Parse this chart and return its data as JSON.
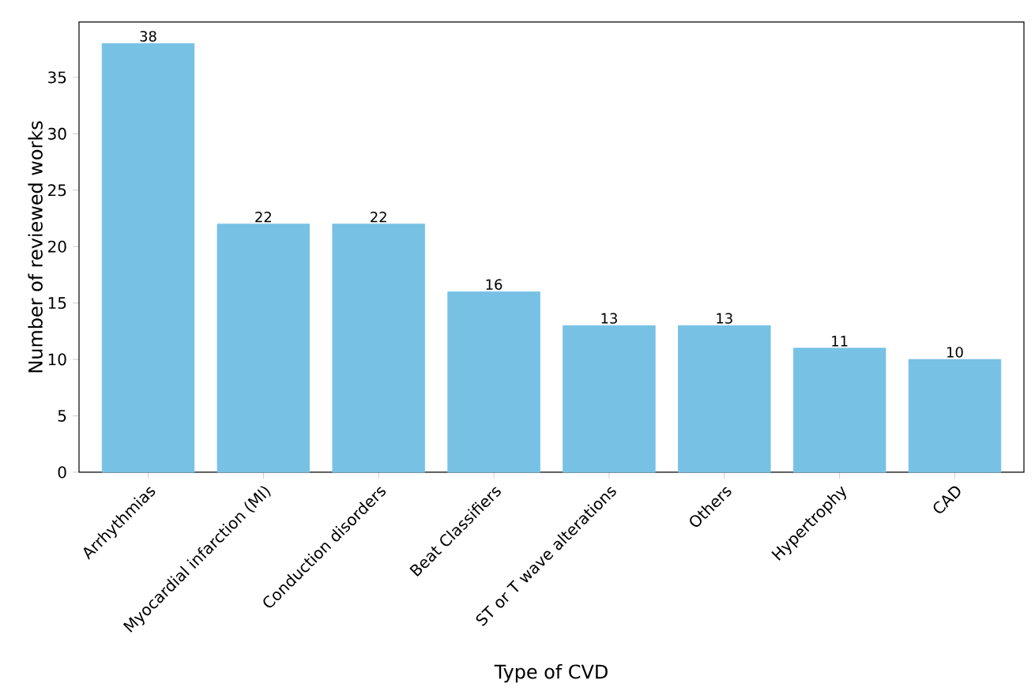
{
  "chart_data": {
    "type": "bar",
    "xlabel": "Type of CVD",
    "ylabel": "Number of reviewed works",
    "categories": [
      "Arrhythmias",
      "Myocardial infarction (MI)",
      "Conduction disorders",
      "Beat Classifiers",
      "ST or T wave alterations",
      "Others",
      "Hypertrophy",
      "CAD"
    ],
    "values": [
      38,
      22,
      22,
      16,
      13,
      13,
      11,
      10
    ],
    "color": "#77c1e5",
    "ylim": [
      0,
      39.9
    ],
    "yticks": [
      0,
      5,
      10,
      15,
      20,
      25,
      30,
      35
    ],
    "data_labels": true
  }
}
